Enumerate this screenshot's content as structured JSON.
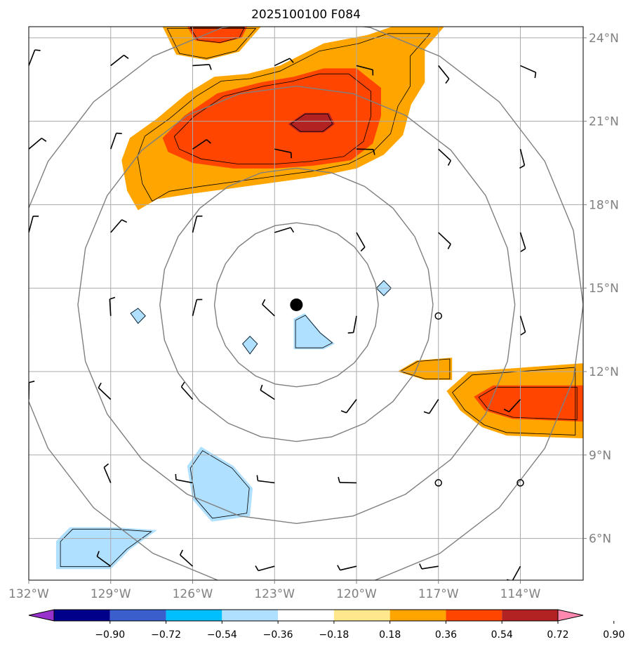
{
  "chart_data": {
    "type": "map",
    "title": "2025100100 F084",
    "x_axis": {
      "range": [
        -132.0,
        -111.7
      ],
      "tick_values": [
        -132,
        -129,
        -126,
        -123,
        -120,
        -117,
        -114
      ],
      "tick_labels": [
        "132°W",
        "129°W",
        "126°W",
        "123°W",
        "120°W",
        "117°W",
        "114°W"
      ]
    },
    "y_axis": {
      "range": [
        4.5,
        24.4
      ],
      "tick_values": [
        6,
        9,
        12,
        15,
        18,
        21,
        24
      ],
      "tick_labels": [
        "6°N",
        "9°N",
        "12°N",
        "15°N",
        "18°N",
        "21°N",
        "24°N"
      ]
    },
    "grid": true,
    "storm_center": {
      "lon": -122.2,
      "lat": 14.4
    },
    "range_rings_deg": [
      3,
      5,
      8,
      10.5
    ],
    "colorbar": {
      "extend": "both",
      "levels": [
        -0.9,
        -0.72,
        -0.54,
        -0.36,
        -0.18,
        0.18,
        0.36,
        0.54,
        0.72,
        0.9
      ],
      "tick_labels": [
        "−0.90",
        "−0.72",
        "−0.54",
        "−0.36",
        "−0.18",
        "0.18",
        "0.36",
        "0.54",
        "0.72",
        "0.90"
      ],
      "colors": [
        "#9932CC",
        "#00008B",
        "#3A5FCD",
        "#00BFFF",
        "#B0E0FF",
        "#FFFFFF",
        "#FFE88C",
        "#FFA500",
        "#FF4500",
        "#B22222",
        "#FF88B0"
      ]
    },
    "filled_regions": [
      {
        "level": 0.36,
        "lonlat": [
          [
            -128,
            17.8
          ],
          [
            -128.4,
            18.5
          ],
          [
            -128.6,
            19.6
          ],
          [
            -128.3,
            20.4
          ],
          [
            -127.3,
            21.1
          ],
          [
            -126.2,
            22.0
          ],
          [
            -125.2,
            22.6
          ],
          [
            -124,
            22.7
          ],
          [
            -122.8,
            23.0
          ],
          [
            -121.2,
            23.8
          ],
          [
            -119.6,
            24.1
          ],
          [
            -118.4,
            24.5
          ],
          [
            -116.7,
            24.5
          ],
          [
            -117.5,
            23.6
          ],
          [
            -117.5,
            22.4
          ],
          [
            -118,
            21.6
          ],
          [
            -118.3,
            20.5
          ],
          [
            -119,
            19.8
          ],
          [
            -120,
            19.3
          ],
          [
            -121.5,
            19.0
          ],
          [
            -123,
            18.8
          ],
          [
            -124.5,
            18.6
          ],
          [
            -126,
            18.4
          ],
          [
            -127.3,
            18.2
          ]
        ]
      },
      {
        "level": 0.36,
        "lonlat": [
          [
            -127.1,
            24.4
          ],
          [
            -126.6,
            23.4
          ],
          [
            -125.5,
            23.2
          ],
          [
            -124.3,
            23.5
          ],
          [
            -123.5,
            24.4
          ]
        ]
      },
      {
        "level": 0.54,
        "lonlat": [
          [
            -127.1,
            20.4
          ],
          [
            -126.3,
            21.2
          ],
          [
            -125.1,
            22.0
          ],
          [
            -123.5,
            22.4
          ],
          [
            -122.3,
            22.6
          ],
          [
            -121.2,
            22.9
          ],
          [
            -120,
            22.9
          ],
          [
            -119.1,
            22.2
          ],
          [
            -119.1,
            21.2
          ],
          [
            -119.4,
            20.2
          ],
          [
            -120.2,
            19.6
          ],
          [
            -121.6,
            19.4
          ],
          [
            -123,
            19.3
          ],
          [
            -124.5,
            19.3
          ],
          [
            -126,
            19.5
          ],
          [
            -126.9,
            19.9
          ]
        ]
      },
      {
        "level": 0.54,
        "lonlat": [
          [
            -126.2,
            24.4
          ],
          [
            -125.9,
            23.9
          ],
          [
            -125,
            23.8
          ],
          [
            -124.2,
            24.0
          ],
          [
            -124.0,
            24.4
          ]
        ]
      },
      {
        "level": 0.72,
        "lonlat": [
          [
            -122.5,
            20.9
          ],
          [
            -121.9,
            21.3
          ],
          [
            -121.0,
            21.3
          ],
          [
            -120.8,
            20.9
          ],
          [
            -121.2,
            20.6
          ],
          [
            -122.1,
            20.6
          ]
        ]
      },
      {
        "level": 0.36,
        "lonlat": [
          [
            -116.7,
            11.3
          ],
          [
            -115.9,
            12.0
          ],
          [
            -111.7,
            12.3
          ],
          [
            -111.7,
            9.6
          ],
          [
            -114.5,
            9.7
          ],
          [
            -115.4,
            10.0
          ],
          [
            -116.2,
            10.6
          ]
        ]
      },
      {
        "level": 0.54,
        "lonlat": [
          [
            -115.7,
            11.1
          ],
          [
            -115.0,
            11.5
          ],
          [
            -111.7,
            11.5
          ],
          [
            -111.7,
            10.2
          ],
          [
            -114.3,
            10.3
          ],
          [
            -115.3,
            10.6
          ]
        ]
      },
      {
        "level": 0.36,
        "lonlat": [
          [
            -118.5,
            12.0
          ],
          [
            -117.8,
            12.4
          ],
          [
            -116.5,
            12.5
          ],
          [
            -116.5,
            11.7
          ],
          [
            -117.5,
            11.7
          ]
        ]
      },
      {
        "level": -0.36,
        "lonlat": [
          [
            -122.3,
            13.9
          ],
          [
            -121.9,
            14.1
          ],
          [
            -121.3,
            13.4
          ],
          [
            -120.8,
            13.0
          ],
          [
            -121.2,
            12.8
          ],
          [
            -122.3,
            12.8
          ]
        ]
      },
      {
        "level": -0.36,
        "lonlat": [
          [
            -124.2,
            13.0
          ],
          [
            -123.9,
            13.3
          ],
          [
            -123.6,
            13.0
          ],
          [
            -123.9,
            12.6
          ]
        ]
      },
      {
        "level": -0.36,
        "lonlat": [
          [
            -126.2,
            8.6
          ],
          [
            -125.7,
            9.3
          ],
          [
            -124.5,
            8.6
          ],
          [
            -123.8,
            7.8
          ],
          [
            -123.9,
            6.8
          ],
          [
            -125.3,
            6.6
          ],
          [
            -126.0,
            7.4
          ]
        ]
      },
      {
        "level": -0.36,
        "lonlat": [
          [
            -131.0,
            5.9
          ],
          [
            -130.5,
            6.4
          ],
          [
            -128.8,
            6.4
          ],
          [
            -127.3,
            6.3
          ],
          [
            -128.3,
            5.6
          ],
          [
            -129.0,
            4.9
          ],
          [
            -131.0,
            4.9
          ]
        ]
      },
      {
        "level": -0.36,
        "lonlat": [
          [
            -128.3,
            14.1
          ],
          [
            -128.0,
            14.3
          ],
          [
            -127.7,
            14.0
          ],
          [
            -128.0,
            13.7
          ]
        ]
      },
      {
        "level": -0.36,
        "lonlat": [
          [
            -119.3,
            15.0
          ],
          [
            -119.0,
            15.3
          ],
          [
            -118.7,
            15.0
          ],
          [
            -119.0,
            14.7
          ]
        ]
      }
    ],
    "wind_barb_grid": {
      "lons": [
        -132,
        -129,
        -126,
        -123,
        -120,
        -117,
        -114
      ],
      "lats": [
        5,
        8,
        11,
        14,
        17,
        20,
        23
      ]
    },
    "calm_points": [
      [
        -117,
        14
      ],
      [
        -117,
        8
      ],
      [
        -114,
        8
      ]
    ]
  }
}
